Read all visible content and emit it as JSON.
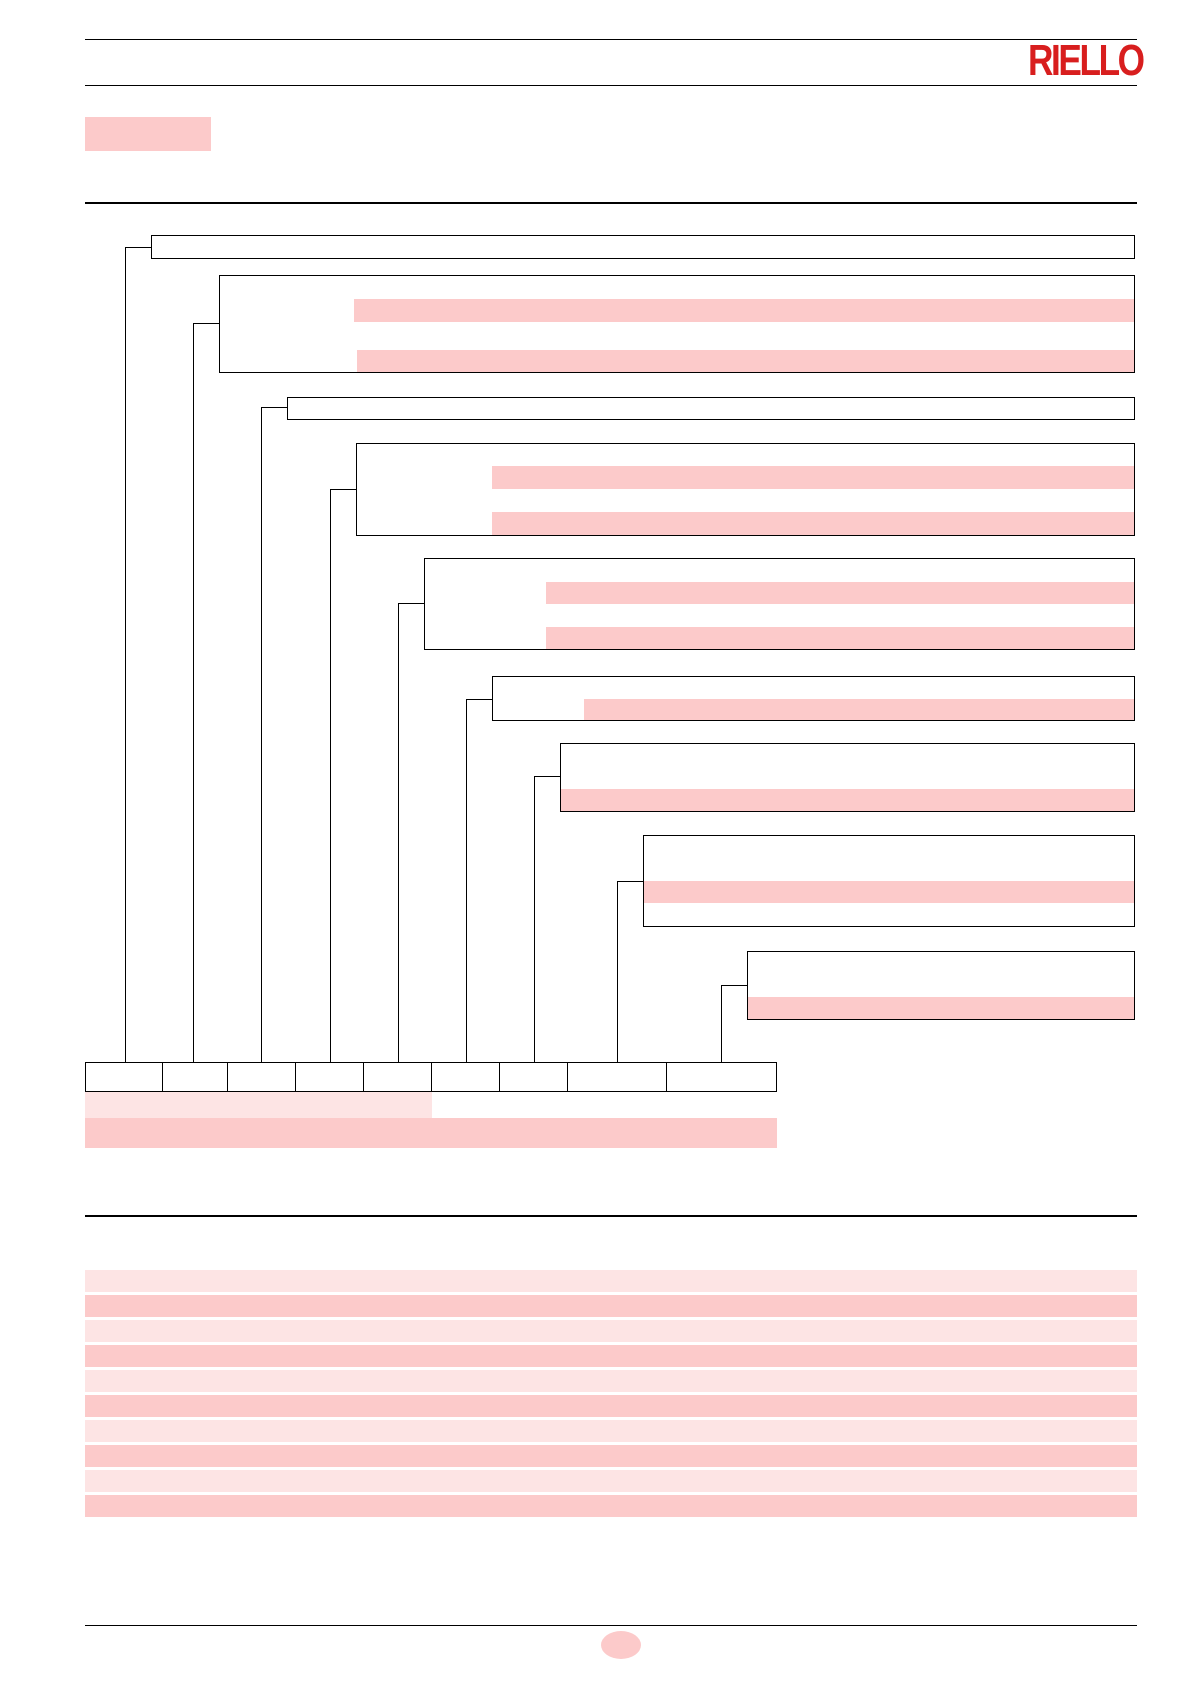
{
  "header": {
    "brand": "RIELLO",
    "brand_color": "#d81e1e"
  },
  "colors": {
    "highlight": "#fccaca",
    "highlight_light": "#fde4e4",
    "rule": "#000000"
  },
  "designation_diagram": {
    "levels": 9,
    "code_cells": 9
  },
  "table": {
    "rows": 10
  }
}
